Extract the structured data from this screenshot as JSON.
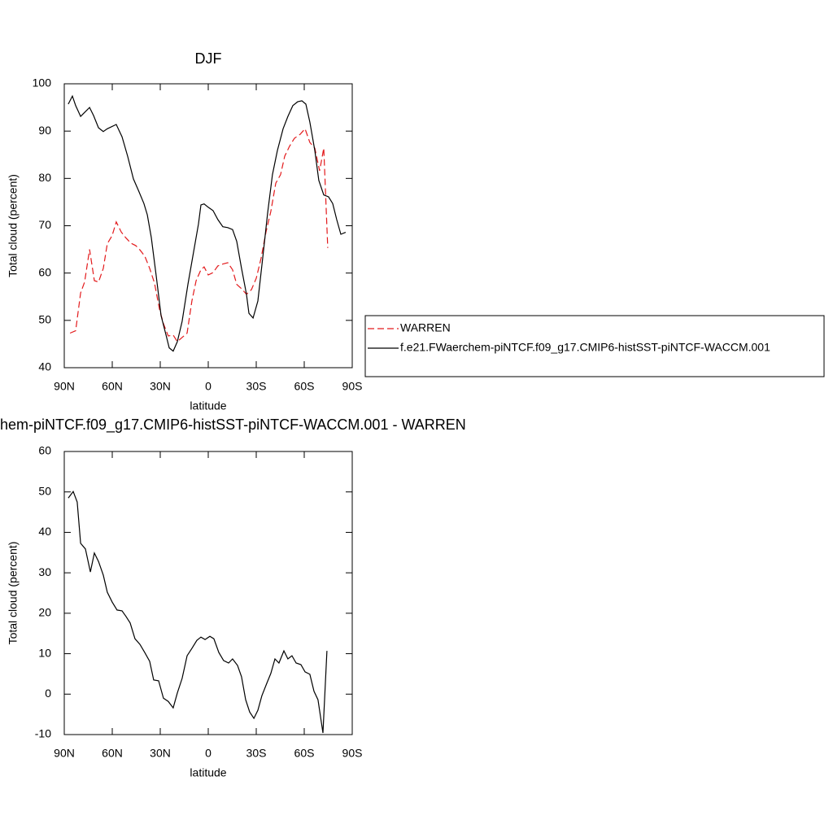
{
  "chart_data": [
    {
      "type": "line",
      "title": "DJF",
      "xlabel": "latitude",
      "ylabel": "Total cloud (percent)",
      "xlim": [
        90,
        -90
      ],
      "xticks": [
        {
          "value": 90,
          "label": "90N"
        },
        {
          "value": 60,
          "label": "60N"
        },
        {
          "value": 30,
          "label": "30N"
        },
        0,
        {
          "value": -30,
          "label": "30S"
        },
        {
          "value": -60,
          "label": "60S"
        },
        {
          "value": -90,
          "label": "90S"
        }
      ],
      "ylim": [
        40,
        100
      ],
      "yticks": [
        40,
        50,
        60,
        70,
        80,
        90,
        100
      ],
      "legend": "right",
      "series": [
        {
          "name": "WARREN",
          "color": "#e31a1c",
          "dashed": true,
          "x": [
            86.4,
            82.9,
            79.8,
            77.3,
            74.2,
            71.2,
            68.6,
            65.6,
            63.1,
            60.1,
            57.5,
            54.4,
            51.4,
            48.3,
            45.3,
            42.7,
            39.7,
            36.6,
            33.6,
            30.5,
            28.0,
            25.0,
            21.9,
            19.3,
            16.3,
            13.2,
            10.2,
            7.6,
            4.6,
            2.6,
            0.0,
            -3.0,
            -6.0,
            -9.1,
            -12.2,
            -15.2,
            -17.8,
            -20.8,
            -23.9,
            -27.0,
            -30.0,
            -33.0,
            -36.1,
            -39.1,
            -42.2,
            -45.2,
            -47.8,
            -50.8,
            -53.9,
            -57.4,
            -60.5,
            -63.5,
            -66.6,
            -69.6,
            -72.2,
            -74.7
          ],
          "values": [
            47.3,
            47.8,
            55.8,
            58.1,
            65.0,
            58.4,
            58.1,
            61.0,
            66.2,
            67.9,
            70.8,
            68.7,
            67.4,
            66.3,
            65.8,
            64.9,
            63.6,
            61.0,
            57.9,
            52.4,
            49.3,
            46.7,
            46.9,
            45.5,
            46.4,
            47.3,
            54.1,
            58.4,
            60.7,
            61.3,
            59.6,
            60.1,
            61.5,
            61.9,
            62.2,
            60.7,
            57.6,
            56.7,
            55.5,
            56.5,
            58.9,
            63.1,
            68.7,
            73.0,
            79.0,
            80.8,
            84.7,
            86.8,
            88.5,
            89.3,
            90.5,
            87.6,
            86.4,
            81.6,
            86.4,
            65.3
          ]
        },
        {
          "name": "f.e21.FWaerchem-piNTCF.f09_g17.CMIP6-histSST-piNTCF-WACCM.001",
          "color": "#000000",
          "dashed": false,
          "x": [
            87.5,
            84.9,
            82.9,
            79.8,
            74.2,
            71.7,
            68.6,
            65.6,
            63.1,
            57.5,
            53.9,
            50.4,
            46.8,
            43.7,
            40.2,
            38.1,
            35.6,
            32.5,
            29.5,
            26.4,
            24.4,
            21.9,
            19.3,
            16.3,
            12.7,
            9.2,
            6.1,
            4.6,
            2.6,
            0.0,
            -3.0,
            -6.0,
            -9.1,
            -12.2,
            -15.2,
            -17.8,
            -20.8,
            -23.9,
            -25.4,
            -28.0,
            -31.0,
            -34.0,
            -37.1,
            -40.1,
            -43.2,
            -46.8,
            -49.8,
            -52.9,
            -55.9,
            -58.5,
            -61.0,
            -63.5,
            -66.6,
            -69.1,
            -72.2,
            -75.2,
            -77.8,
            -80.3,
            -82.9,
            -85.9
          ],
          "values": [
            95.7,
            97.4,
            95.4,
            93.1,
            95.0,
            93.3,
            90.7,
            89.9,
            90.5,
            91.4,
            88.8,
            84.7,
            79.9,
            77.5,
            74.7,
            72.3,
            67.5,
            59.3,
            51.0,
            46.9,
            44.2,
            43.5,
            45.5,
            49.8,
            57.6,
            64.4,
            70.4,
            74.4,
            74.6,
            73.9,
            73.2,
            71.3,
            69.8,
            69.6,
            69.2,
            66.7,
            61.0,
            55.5,
            51.5,
            50.5,
            54.1,
            63.1,
            72.7,
            80.8,
            85.9,
            90.5,
            93.1,
            95.4,
            96.2,
            96.4,
            95.7,
            91.9,
            85.9,
            79.6,
            76.5,
            76.1,
            74.7,
            71.3,
            68.2,
            68.6
          ]
        }
      ]
    },
    {
      "type": "line",
      "title": "hem-piNTCF.f09_g17.CMIP6-histSST-piNTCF-WACCM.001 - WARREN",
      "xlabel": "latitude",
      "ylabel": "Total cloud (percent)",
      "xlim": [
        90,
        -90
      ],
      "xticks": [
        {
          "value": 90,
          "label": "90N"
        },
        {
          "value": 60,
          "label": "60N"
        },
        {
          "value": 30,
          "label": "30N"
        },
        0,
        {
          "value": -30,
          "label": "30S"
        },
        {
          "value": -60,
          "label": "60S"
        },
        {
          "value": -90,
          "label": "90S"
        }
      ],
      "ylim": [
        -10,
        60
      ],
      "yticks": [
        -10,
        0,
        10,
        20,
        30,
        40,
        50,
        60
      ],
      "series": [
        {
          "color": "#000000",
          "dashed": false,
          "x": [
            87.5,
            84.4,
            81.9,
            79.8,
            76.8,
            73.7,
            71.2,
            68.6,
            65.6,
            63.1,
            60.1,
            57.0,
            53.9,
            51.4,
            48.8,
            45.8,
            42.7,
            39.7,
            36.6,
            34.1,
            31.0,
            28.0,
            25.0,
            21.9,
            19.3,
            16.3,
            13.2,
            10.2,
            7.1,
            4.6,
            2.0,
            -1.0,
            -3.5,
            -6.6,
            -9.6,
            -12.7,
            -15.2,
            -18.3,
            -20.8,
            -23.4,
            -25.9,
            -28.5,
            -31.0,
            -33.5,
            -36.6,
            -39.1,
            -41.7,
            -44.2,
            -47.3,
            -49.8,
            -52.3,
            -54.9,
            -57.9,
            -60.5,
            -63.5,
            -66.1,
            -68.6,
            -71.7,
            -74.2
          ],
          "values": [
            48.5,
            50.1,
            47.5,
            37.3,
            35.9,
            30.2,
            34.9,
            32.8,
            29.4,
            25.2,
            22.8,
            20.8,
            20.6,
            19.2,
            17.6,
            13.7,
            12.3,
            10.3,
            8.1,
            3.5,
            3.3,
            -1.0,
            -1.8,
            -3.4,
            0.3,
            3.9,
            9.5,
            11.3,
            13.3,
            14.1,
            13.5,
            14.3,
            13.7,
            10.3,
            8.3,
            7.7,
            8.7,
            7.1,
            4.3,
            -1.4,
            -4.4,
            -6.0,
            -4.0,
            -0.4,
            2.7,
            5.1,
            8.7,
            7.7,
            10.7,
            8.7,
            9.5,
            7.7,
            7.3,
            5.5,
            4.9,
            0.7,
            -1.4,
            -9.6,
            10.7
          ]
        }
      ]
    }
  ]
}
